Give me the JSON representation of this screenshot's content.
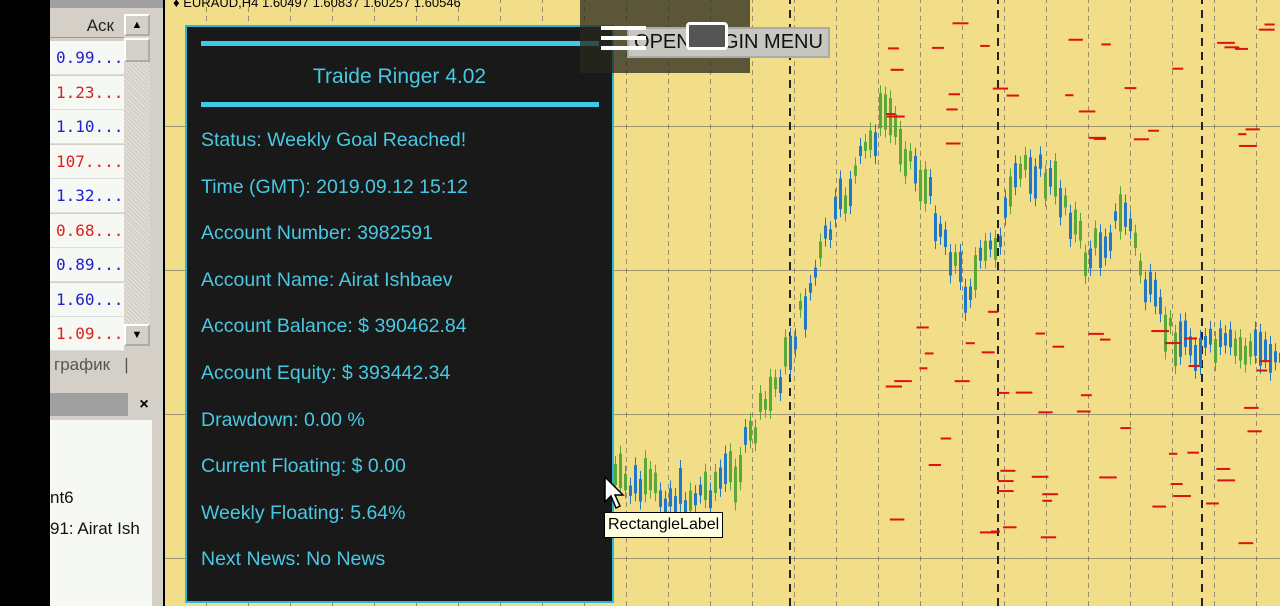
{
  "market_watch": {
    "column_header": "Аск",
    "rows": [
      {
        "ask": "0.99...",
        "color": "#2020d0"
      },
      {
        "ask": "1.23...",
        "color": "#e02020"
      },
      {
        "ask": "1.10...",
        "color": "#2020d0"
      },
      {
        "ask": "107....",
        "color": "#e02020"
      },
      {
        "ask": "1.32...",
        "color": "#2020d0"
      },
      {
        "ask": "0.68...",
        "color": "#e02020"
      },
      {
        "ask": "0.89...",
        "color": "#2020d0"
      },
      {
        "ask": "1.60...",
        "color": "#2020d0"
      },
      {
        "ask": "1.09...",
        "color": "#e02020"
      }
    ],
    "tab_label": "график"
  },
  "navigator": {
    "close": "×",
    "lines": [
      "nt6",
      "91: Airat Ish"
    ]
  },
  "chart": {
    "title": "EURAUD,H4  1.60497 1.60837 1.60257 1.60546",
    "background": "#f2dd88"
  },
  "panel": {
    "title": "Traide Ringer 4.02",
    "lines": [
      "Status: Weekly Goal Reached!",
      "Time (GMT): 2019.09.12 15:12",
      "Account Number: 3982591",
      "Account Name: Airat Ishbaev",
      "Account Balance: $ 390462.84",
      "Account Equity: $ 393442.34",
      "Drawdown: 0.00 %",
      "Current Floating: $ 0.00",
      "Weekly Floating: 5.64%",
      "Next News: No News"
    ],
    "accent": "#3fc9e6"
  },
  "login_button": "OPEN LOGIN MENU",
  "tooltip": "RectangleLabel"
}
